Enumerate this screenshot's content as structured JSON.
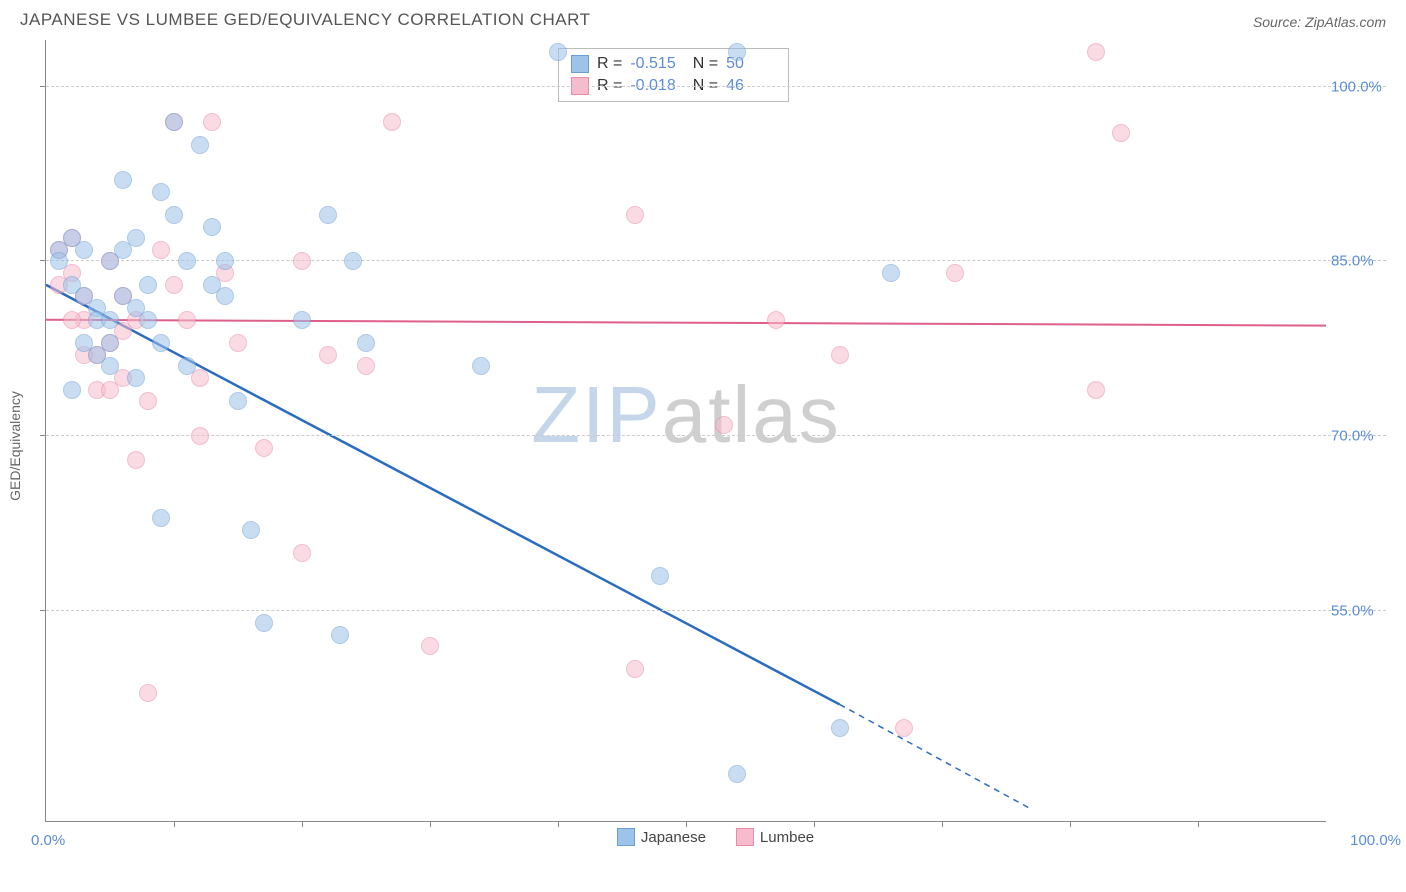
{
  "title": "JAPANESE VS LUMBEE GED/EQUIVALENCY CORRELATION CHART",
  "source": "Source: ZipAtlas.com",
  "yaxis_label": "GED/Equivalency",
  "watermark": {
    "zip": "ZIP",
    "atlas": "atlas"
  },
  "chart": {
    "type": "scatter",
    "xlim": [
      0,
      100
    ],
    "ylim": [
      37,
      104
    ],
    "x_ticks": [
      10,
      20,
      30,
      40,
      50,
      60,
      70,
      80,
      90
    ],
    "y_ticks": [
      55,
      70,
      85,
      100
    ],
    "y_tick_labels": [
      "55.0%",
      "70.0%",
      "85.0%",
      "100.0%"
    ],
    "x_label_min": "0.0%",
    "x_label_max": "100.0%",
    "background_color": "#ffffff",
    "grid_color": "#cccccc",
    "axis_color": "#888888",
    "axis_label_color": "#5b8dd6",
    "marker_radius": 9,
    "series": [
      {
        "name": "Japanese",
        "fill": "#9ec3e9",
        "stroke": "#6a9ed4",
        "line_color": "#2c6cc0",
        "line_width": 2.5,
        "R": "-0.515",
        "N": "50",
        "trend_solid": {
          "x1": 0,
          "y1": 83,
          "x2": 62,
          "y2": 47
        },
        "trend_dash": {
          "x1": 62,
          "y1": 47,
          "x2": 77,
          "y2": 38
        },
        "points": [
          [
            1,
            86
          ],
          [
            1,
            85
          ],
          [
            2,
            87
          ],
          [
            2,
            83
          ],
          [
            3,
            86
          ],
          [
            3,
            82
          ],
          [
            4,
            81
          ],
          [
            4,
            80
          ],
          [
            5,
            85
          ],
          [
            5,
            78
          ],
          [
            6,
            92
          ],
          [
            6,
            86
          ],
          [
            7,
            81
          ],
          [
            7,
            75
          ],
          [
            8,
            83
          ],
          [
            8,
            80
          ],
          [
            9,
            91
          ],
          [
            9,
            78
          ],
          [
            10,
            97
          ],
          [
            10,
            89
          ],
          [
            11,
            85
          ],
          [
            12,
            95
          ],
          [
            13,
            88
          ],
          [
            14,
            82
          ],
          [
            15,
            73
          ],
          [
            9,
            63
          ],
          [
            16,
            62
          ],
          [
            17,
            54
          ],
          [
            22,
            89
          ],
          [
            23,
            53
          ],
          [
            25,
            78
          ],
          [
            34,
            76
          ],
          [
            40,
            103
          ],
          [
            48,
            58
          ],
          [
            54,
            41
          ],
          [
            54,
            103
          ],
          [
            62,
            45
          ],
          [
            66,
            84
          ],
          [
            2,
            74
          ],
          [
            4,
            77
          ],
          [
            6,
            82
          ],
          [
            7,
            87
          ],
          [
            13,
            83
          ],
          [
            14,
            85
          ],
          [
            3,
            78
          ],
          [
            5,
            76
          ],
          [
            11,
            76
          ],
          [
            24,
            85
          ],
          [
            5,
            80
          ],
          [
            20,
            80
          ]
        ]
      },
      {
        "name": "Lumbee",
        "fill": "#f6bccd",
        "stroke": "#e88aa8",
        "line_color": "#de5f8a",
        "line_width": 2,
        "R": "-0.018",
        "N": "46",
        "trend_solid": {
          "x1": 0,
          "y1": 80,
          "x2": 100,
          "y2": 79.5
        },
        "trend_dash": null,
        "points": [
          [
            1,
            86
          ],
          [
            1,
            83
          ],
          [
            2,
            87
          ],
          [
            2,
            84
          ],
          [
            3,
            82
          ],
          [
            3,
            80
          ],
          [
            4,
            77
          ],
          [
            5,
            85
          ],
          [
            5,
            78
          ],
          [
            6,
            82
          ],
          [
            6,
            75
          ],
          [
            7,
            80
          ],
          [
            8,
            73
          ],
          [
            8,
            48
          ],
          [
            9,
            86
          ],
          [
            10,
            97
          ],
          [
            10,
            83
          ],
          [
            11,
            80
          ],
          [
            12,
            70
          ],
          [
            15,
            78
          ],
          [
            17,
            69
          ],
          [
            20,
            85
          ],
          [
            20,
            60
          ],
          [
            22,
            77
          ],
          [
            25,
            76
          ],
          [
            27,
            97
          ],
          [
            30,
            52
          ],
          [
            46,
            89
          ],
          [
            46,
            50
          ],
          [
            53,
            71
          ],
          [
            57,
            80
          ],
          [
            62,
            77
          ],
          [
            67,
            45
          ],
          [
            71,
            84
          ],
          [
            82,
            103
          ],
          [
            84,
            96
          ],
          [
            82,
            74
          ],
          [
            4,
            74
          ],
          [
            6,
            79
          ],
          [
            12,
            75
          ],
          [
            14,
            84
          ],
          [
            13,
            97
          ],
          [
            2,
            80
          ],
          [
            3,
            77
          ],
          [
            5,
            74
          ],
          [
            7,
            68
          ]
        ]
      }
    ]
  },
  "legend": [
    {
      "label": "Japanese",
      "fill": "#9ec3e9",
      "stroke": "#6a9ed4"
    },
    {
      "label": "Lumbee",
      "fill": "#f6bccd",
      "stroke": "#e88aa8"
    }
  ]
}
